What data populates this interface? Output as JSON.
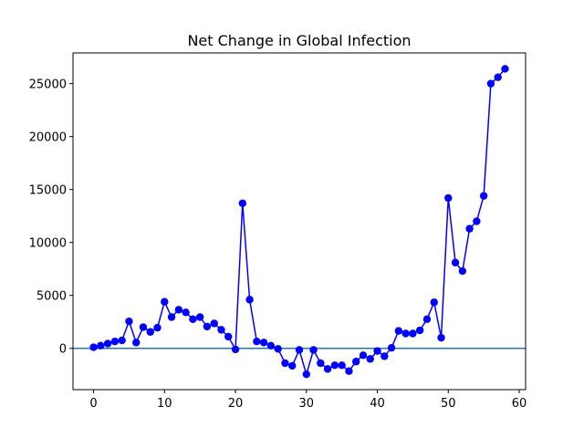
{
  "chart_data": {
    "type": "line",
    "title": "Net Change in Global Infection",
    "xlabel": "",
    "ylabel": "",
    "xlim": [
      -2.9,
      60.9
    ],
    "ylim": [
      -3900,
      27900
    ],
    "x_ticks": [
      0,
      10,
      20,
      30,
      40,
      50,
      60
    ],
    "y_ticks": [
      0,
      5000,
      10000,
      15000,
      20000,
      25000
    ],
    "grid": false,
    "legend": "none",
    "series": [
      {
        "color": "#0000ff",
        "marker": "circle",
        "x": [
          0,
          1,
          2,
          3,
          4,
          5,
          6,
          7,
          8,
          9,
          10,
          11,
          12,
          13,
          14,
          15,
          16,
          17,
          18,
          19,
          20,
          21,
          22,
          23,
          24,
          25,
          26,
          27,
          28,
          29,
          30,
          31,
          32,
          33,
          34,
          35,
          36,
          37,
          38,
          39,
          40,
          41,
          42,
          43,
          44,
          45,
          46,
          47,
          48,
          49,
          50,
          51,
          52,
          53,
          54,
          55,
          56,
          57,
          58
        ],
        "y": [
          100,
          250,
          450,
          650,
          750,
          2550,
          550,
          2000,
          1550,
          1950,
          4400,
          2950,
          3650,
          3400,
          2750,
          2950,
          2050,
          2350,
          1750,
          1100,
          -100,
          13700,
          4600,
          650,
          550,
          250,
          -50,
          -1400,
          -1650,
          -150,
          -2450,
          -150,
          -1400,
          -1950,
          -1600,
          -1600,
          -2150,
          -1250,
          -650,
          -1000,
          -250,
          -750,
          50,
          1650,
          1400,
          1400,
          1700,
          2750,
          4350,
          1000,
          14200,
          8100,
          7300,
          11300,
          12000,
          14400,
          25000,
          25600,
          26400
        ]
      }
    ],
    "reference_lines": [
      {
        "orientation": "horizontal",
        "y": 0,
        "color": "#1f77b4"
      }
    ]
  }
}
